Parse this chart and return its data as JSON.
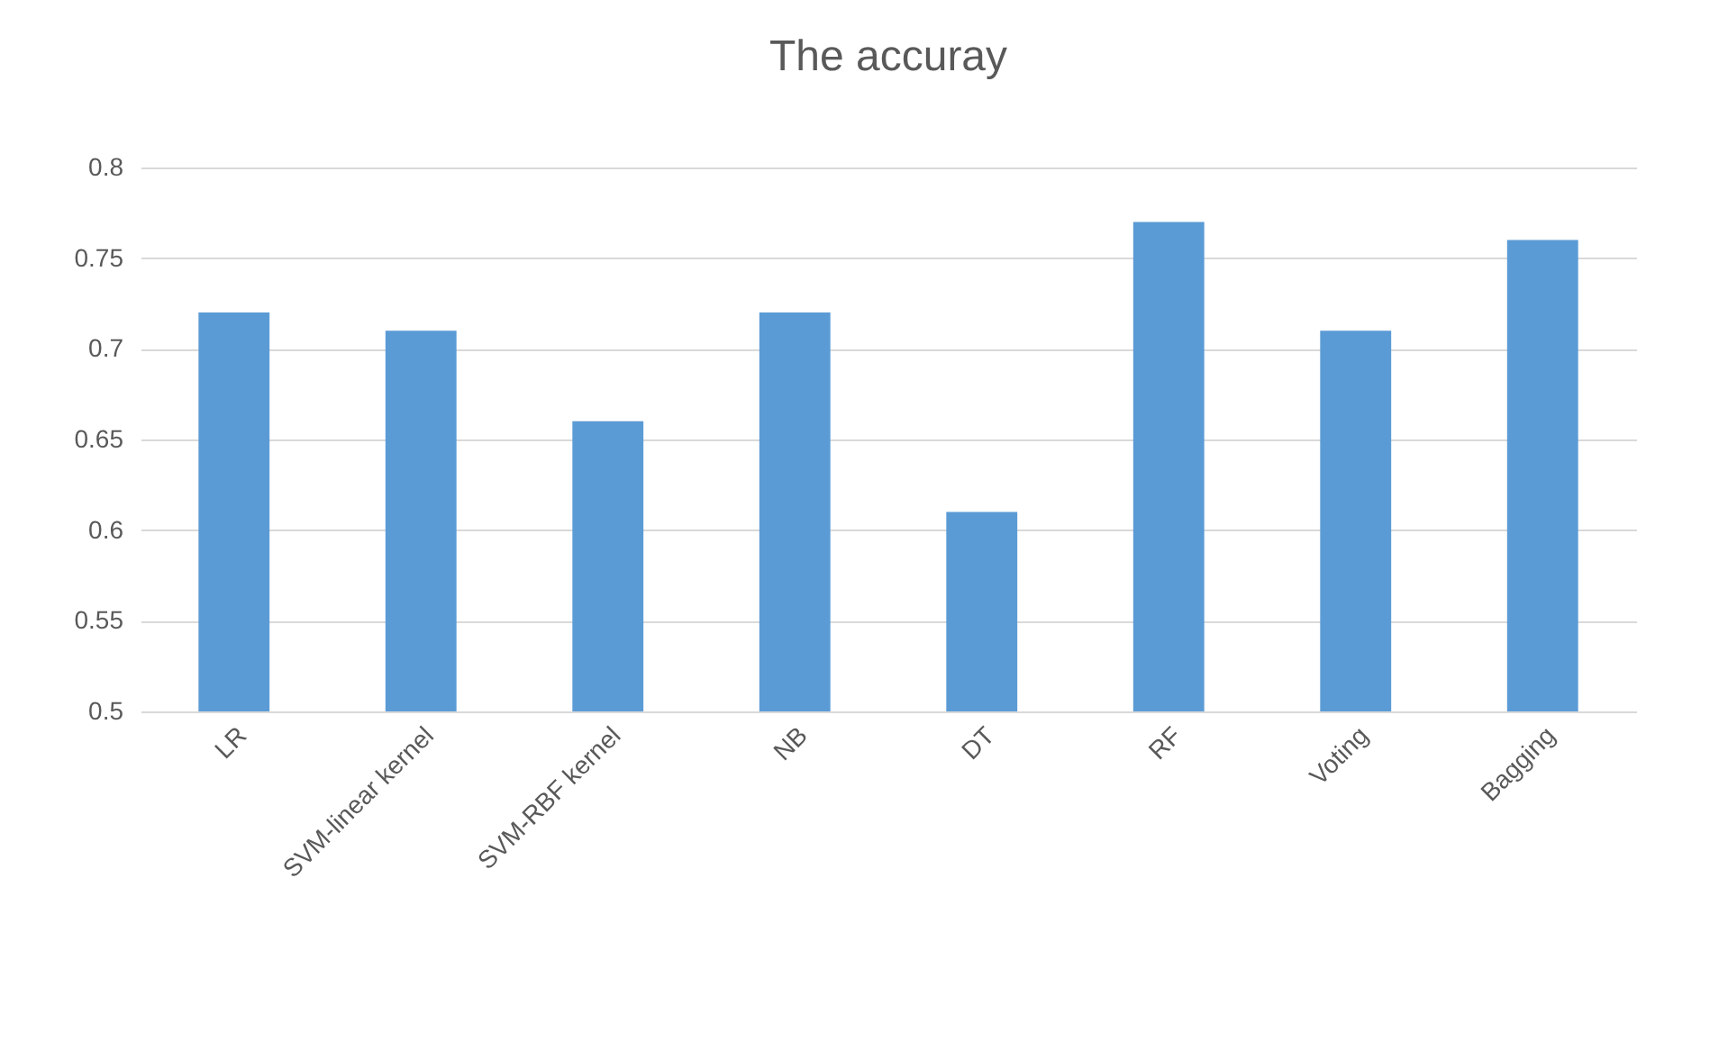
{
  "chart_data": {
    "type": "bar",
    "title": "The accuray",
    "categories": [
      "LR",
      "SVM-linear kernel",
      "SVM-RBF kernel",
      "NB",
      "DT",
      "RF",
      "Voting",
      "Bagging"
    ],
    "values": [
      0.72,
      0.71,
      0.66,
      0.72,
      0.61,
      0.77,
      0.71,
      0.76
    ],
    "color": "#5b9bd5",
    "ylim": [
      0.5,
      0.8
    ],
    "yticks": [
      0.5,
      0.55,
      0.6,
      0.65,
      0.7,
      0.75,
      0.8
    ],
    "grid": "y"
  }
}
